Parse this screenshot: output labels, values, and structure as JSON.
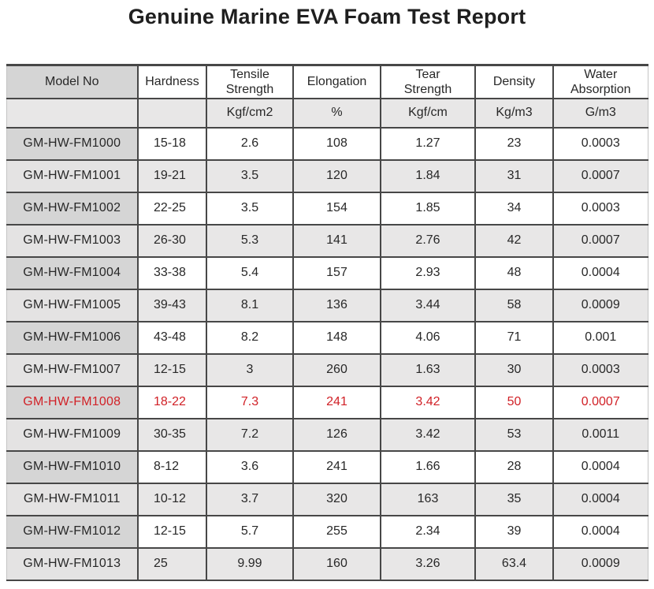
{
  "title": "Genuine Marine EVA Foam Test Report",
  "colors": {
    "highlight_text": "#d12127",
    "model_column_gray": "#d5d5d5",
    "stripe_gray": "#e8e7e7",
    "border_dark": "#474747",
    "text": "#282828"
  },
  "table": {
    "columns": [
      {
        "label": "Model No",
        "unit": ""
      },
      {
        "label": "Hardness",
        "unit": ""
      },
      {
        "label": "Tensile\nStrength",
        "unit": "Kgf/cm2"
      },
      {
        "label": "Elongation",
        "unit": "%"
      },
      {
        "label": "Tear\nStrength",
        "unit": "Kgf/cm"
      },
      {
        "label": "Density",
        "unit": "Kg/m3"
      },
      {
        "label": "Water\nAbsorption",
        "unit": "G/m3"
      }
    ],
    "rows": [
      {
        "model": "GM-HW-FM1000",
        "hardness": "15-18",
        "tensile": "2.6",
        "elongation": "108",
        "tear": "1.27",
        "density": "23",
        "water": "0.0003",
        "highlight": false
      },
      {
        "model": "GM-HW-FM1001",
        "hardness": "19-21",
        "tensile": "3.5",
        "elongation": "120",
        "tear": "1.84",
        "density": "31",
        "water": "0.0007",
        "highlight": false
      },
      {
        "model": "GM-HW-FM1002",
        "hardness": "22-25",
        "tensile": "3.5",
        "elongation": "154",
        "tear": "1.85",
        "density": "34",
        "water": "0.0003",
        "highlight": false
      },
      {
        "model": "GM-HW-FM1003",
        "hardness": "26-30",
        "tensile": "5.3",
        "elongation": "141",
        "tear": "2.76",
        "density": "42",
        "water": "0.0007",
        "highlight": false
      },
      {
        "model": "GM-HW-FM1004",
        "hardness": "33-38",
        "tensile": "5.4",
        "elongation": "157",
        "tear": "2.93",
        "density": "48",
        "water": "0.0004",
        "highlight": false
      },
      {
        "model": "GM-HW-FM1005",
        "hardness": "39-43",
        "tensile": "8.1",
        "elongation": "136",
        "tear": "3.44",
        "density": "58",
        "water": "0.0009",
        "highlight": false
      },
      {
        "model": "GM-HW-FM1006",
        "hardness": "43-48",
        "tensile": "8.2",
        "elongation": "148",
        "tear": "4.06",
        "density": "71",
        "water": "0.001",
        "highlight": false
      },
      {
        "model": "GM-HW-FM1007",
        "hardness": "12-15",
        "tensile": "3",
        "elongation": "260",
        "tear": "1.63",
        "density": "30",
        "water": "0.0003",
        "highlight": false
      },
      {
        "model": "GM-HW-FM1008",
        "hardness": "18-22",
        "tensile": "7.3",
        "elongation": "241",
        "tear": "3.42",
        "density": "50",
        "water": "0.0007",
        "highlight": true
      },
      {
        "model": "GM-HW-FM1009",
        "hardness": "30-35",
        "tensile": "7.2",
        "elongation": "126",
        "tear": "3.42",
        "density": "53",
        "water": "0.0011",
        "highlight": false
      },
      {
        "model": "GM-HW-FM1010",
        "hardness": "8-12",
        "tensile": "3.6",
        "elongation": "241",
        "tear": "1.66",
        "density": "28",
        "water": "0.0004",
        "highlight": false
      },
      {
        "model": "GM-HW-FM1011",
        "hardness": "10-12",
        "tensile": "3.7",
        "elongation": "320",
        "tear": "163",
        "density": "35",
        "water": "0.0004",
        "highlight": false
      },
      {
        "model": "GM-HW-FM1012",
        "hardness": "12-15",
        "tensile": "5.7",
        "elongation": "255",
        "tear": "2.34",
        "density": "39",
        "water": "0.0004",
        "highlight": false
      },
      {
        "model": "GM-HW-FM1013",
        "hardness": "25",
        "tensile": "9.99",
        "elongation": "160",
        "tear": "3.26",
        "density": "63.4",
        "water": "0.0009",
        "highlight": false
      }
    ]
  }
}
